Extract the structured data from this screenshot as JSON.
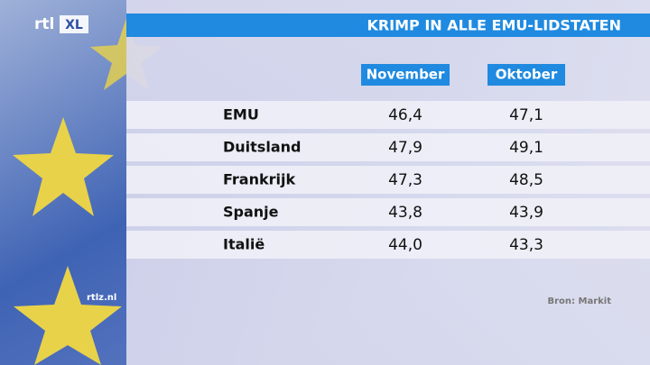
{
  "logo": {
    "main": "rtl",
    "suffix": "XL"
  },
  "website": "rtlz.nl",
  "title": "KRIMP IN ALLE EMU-LIDSTATEN",
  "table": {
    "columns": [
      "November",
      "Oktober"
    ],
    "rows": [
      [
        "EMU",
        "46,4",
        "47,1"
      ],
      [
        "Duitsland",
        "47,9",
        "49,1"
      ],
      [
        "Frankrijk",
        "47,3",
        "48,5"
      ],
      [
        "Spanje",
        "43,8",
        "43,9"
      ],
      [
        "Italië",
        "44,0",
        "43,3"
      ]
    ]
  },
  "source": "Bron: Markit"
}
